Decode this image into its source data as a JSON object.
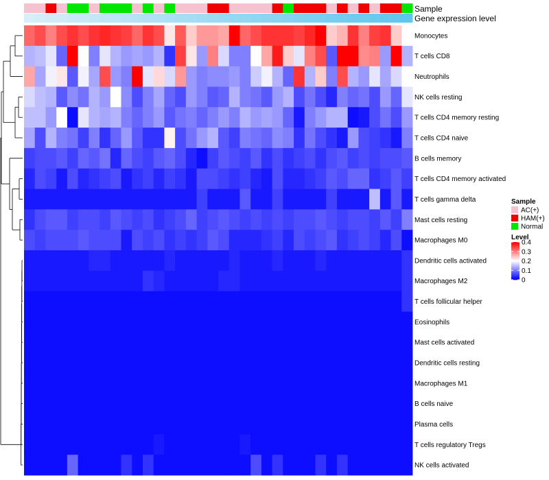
{
  "chart_data": {
    "type": "heatmap",
    "annotation_labels": {
      "sample": "Sample",
      "gene_expression": "Gene expression level"
    },
    "rows": [
      "Monocytes",
      "T cells CD8",
      "Neutrophils",
      "NK cells resting",
      "T cells CD4 memory resting",
      "T cells CD4 naive",
      "B cells memory",
      "T cells CD4 memory activated",
      "T cells gamma delta",
      "Mast cells resting",
      "Macrophages M0",
      "Dendritic cells activated",
      "Macrophages M2",
      "T cells follicular helper",
      "Eosinophils",
      "Mast cells activated",
      "Dendritic cells resting",
      "Macrophages M1",
      "B cells naive",
      "Plasma cells",
      "T cells regulatory  Tregs",
      "NK cells activated"
    ],
    "sample_groups": [
      "AC(+)",
      "AC(+)",
      "HAM(+)",
      "AC(+)",
      "Normal",
      "Normal",
      "AC(+)",
      "Normal",
      "Normal",
      "Normal",
      "AC(+)",
      "Normal",
      "AC(+)",
      "Normal",
      "AC(+)",
      "AC(+)",
      "AC(+)",
      "HAM(+)",
      "HAM(+)",
      "AC(+)",
      "AC(+)",
      "AC(+)",
      "AC(+)",
      "HAM(+)",
      "Normal",
      "HAM(+)",
      "HAM(+)",
      "HAM(+)",
      "AC(+)",
      "HAM(+)",
      "AC(+)",
      "HAM(+)",
      "AC(+)",
      "HAM(+)",
      "HAM(+)",
      "Normal"
    ],
    "values": [
      [
        0.32,
        0.34,
        0.3,
        0.34,
        0.36,
        0.34,
        0.36,
        0.37,
        0.36,
        0.35,
        0.32,
        0.36,
        0.34,
        0.22,
        0.33,
        0.24,
        0.28,
        0.28,
        0.27,
        0.4,
        0.32,
        0.34,
        0.36,
        0.36,
        0.36,
        0.35,
        0.37,
        0.4,
        0.24,
        0.26,
        0.36,
        0.3,
        0.35,
        0.36,
        0.24,
        0.2
      ],
      [
        0.14,
        0.15,
        0.18,
        0.08,
        0.4,
        0.2,
        0.1,
        0.18,
        0.14,
        0.12,
        0.13,
        0.12,
        0.14,
        0.04,
        0.35,
        0.22,
        0.12,
        0.3,
        0.17,
        0.1,
        0.1,
        0.2,
        0.27,
        0.38,
        0.24,
        0.18,
        0.3,
        0.34,
        0.07,
        0.4,
        0.4,
        0.29,
        0.3,
        0.12,
        0.4,
        0.14
      ],
      [
        0.27,
        0.13,
        0.19,
        0.22,
        0.07,
        0.19,
        0.13,
        0.34,
        0.12,
        0.1,
        0.4,
        0.18,
        0.23,
        0.17,
        0.28,
        0.12,
        0.1,
        0.11,
        0.11,
        0.12,
        0.1,
        0.16,
        0.19,
        0.14,
        0.08,
        0.36,
        0.14,
        0.24,
        0.1,
        0.34,
        0.14,
        0.12,
        0.18,
        0.13,
        0.17,
        0.2
      ],
      [
        0.17,
        0.15,
        0.14,
        0.07,
        0.11,
        0.09,
        0.14,
        0.12,
        0.2,
        0.11,
        0.06,
        0.1,
        0.13,
        0.08,
        0.06,
        0.12,
        0.1,
        0.07,
        0.08,
        0.14,
        0.1,
        0.09,
        0.07,
        0.12,
        0.14,
        0.06,
        0.09,
        0.06,
        0.03,
        0.1,
        0.08,
        0.09,
        0.06,
        0.12,
        0.08,
        0.18
      ],
      [
        0.15,
        0.15,
        0.12,
        0.2,
        0.01,
        0.18,
        0.14,
        0.13,
        0.14,
        0.1,
        0.08,
        0.1,
        0.12,
        0.07,
        0.09,
        0.1,
        0.08,
        0.1,
        0.12,
        0.1,
        0.14,
        0.12,
        0.13,
        0.12,
        0.08,
        0.02,
        0.1,
        0.12,
        0.14,
        0.14,
        0.01,
        0.02,
        0.06,
        0.09,
        0.06,
        0.12
      ],
      [
        0.13,
        0.06,
        0.14,
        0.1,
        0.09,
        0.05,
        0.1,
        0.04,
        0.08,
        0.12,
        0.07,
        0.04,
        0.04,
        0.21,
        0.06,
        0.09,
        0.12,
        0.14,
        0.07,
        0.05,
        0.1,
        0.09,
        0.08,
        0.11,
        0.1,
        0.04,
        0.09,
        0.06,
        0.04,
        0.02,
        0.12,
        0.06,
        0.05,
        0.04,
        0.02,
        0.1
      ],
      [
        0.05,
        0.06,
        0.06,
        0.07,
        0.05,
        0.08,
        0.07,
        0.09,
        0.03,
        0.08,
        0.06,
        0.05,
        0.07,
        0.08,
        0.06,
        0.03,
        0.01,
        0.05,
        0.07,
        0.06,
        0.05,
        0.07,
        0.04,
        0.06,
        0.04,
        0.05,
        0.06,
        0.04,
        0.06,
        0.07,
        0.05,
        0.06,
        0.05,
        0.06,
        0.06,
        0.07
      ],
      [
        0.03,
        0.06,
        0.05,
        0.02,
        0.06,
        0.03,
        0.04,
        0.05,
        0.06,
        0.02,
        0.04,
        0.05,
        0.03,
        0.05,
        0.04,
        0.02,
        0.06,
        0.06,
        0.05,
        0.04,
        0.05,
        0.03,
        0.02,
        0.06,
        0.03,
        0.03,
        0.04,
        0.05,
        0.07,
        0.06,
        0.08,
        0.08,
        0.04,
        0.05,
        0.07,
        0.05
      ],
      [
        0.02,
        0.02,
        0.02,
        0.02,
        0.02,
        0.02,
        0.02,
        0.02,
        0.02,
        0.02,
        0.02,
        0.02,
        0.02,
        0.02,
        0.02,
        0.02,
        0.05,
        0.02,
        0.02,
        0.02,
        0.07,
        0.02,
        0.02,
        0.05,
        0.02,
        0.02,
        0.02,
        0.02,
        0.05,
        0.02,
        0.02,
        0.02,
        0.15,
        0.02,
        0.07,
        0.02
      ],
      [
        0.04,
        0.06,
        0.07,
        0.07,
        0.05,
        0.06,
        0.06,
        0.05,
        0.07,
        0.06,
        0.05,
        0.06,
        0.04,
        0.05,
        0.06,
        0.08,
        0.05,
        0.06,
        0.07,
        0.06,
        0.05,
        0.06,
        0.05,
        0.06,
        0.05,
        0.06,
        0.06,
        0.07,
        0.06,
        0.05,
        0.06,
        0.06,
        0.05,
        0.07,
        0.05,
        0.1
      ],
      [
        0.06,
        0.05,
        0.06,
        0.06,
        0.06,
        0.07,
        0.06,
        0.06,
        0.06,
        0.02,
        0.06,
        0.05,
        0.06,
        0.04,
        0.05,
        0.04,
        0.05,
        0.07,
        0.06,
        0.03,
        0.03,
        0.03,
        0.04,
        0.05,
        0.03,
        0.06,
        0.05,
        0.06,
        0.07,
        0.04,
        0.05,
        0.06,
        0.05,
        0.03,
        0.06,
        0.01
      ],
      [
        0.02,
        0.02,
        0.02,
        0.02,
        0.02,
        0.02,
        0.03,
        0.03,
        0.02,
        0.02,
        0.02,
        0.02,
        0.02,
        0.03,
        0.02,
        0.02,
        0.02,
        0.02,
        0.02,
        0.03,
        0.02,
        0.02,
        0.02,
        0.03,
        0.02,
        0.02,
        0.02,
        0.03,
        0.02,
        0.02,
        0.02,
        0.02,
        0.02,
        0.02,
        0.02,
        0.04
      ],
      [
        0.02,
        0.02,
        0.02,
        0.02,
        0.02,
        0.02,
        0.02,
        0.02,
        0.02,
        0.02,
        0.02,
        0.04,
        0.03,
        0.02,
        0.02,
        0.02,
        0.02,
        0.02,
        0.03,
        0.03,
        0.02,
        0.02,
        0.02,
        0.02,
        0.02,
        0.02,
        0.02,
        0.02,
        0.02,
        0.02,
        0.02,
        0.02,
        0.02,
        0.02,
        0.02,
        0.04
      ],
      [
        0.01,
        0.01,
        0.01,
        0.01,
        0.01,
        0.01,
        0.01,
        0.01,
        0.01,
        0.01,
        0.01,
        0.01,
        0.01,
        0.01,
        0.01,
        0.01,
        0.01,
        0.01,
        0.01,
        0.01,
        0.01,
        0.01,
        0.01,
        0.01,
        0.01,
        0.01,
        0.01,
        0.01,
        0.01,
        0.01,
        0.01,
        0.01,
        0.01,
        0.01,
        0.01,
        0.04
      ],
      [
        0.01,
        0.01,
        0.01,
        0.01,
        0.01,
        0.01,
        0.01,
        0.01,
        0.01,
        0.01,
        0.01,
        0.01,
        0.01,
        0.01,
        0.01,
        0.01,
        0.01,
        0.01,
        0.01,
        0.01,
        0.01,
        0.01,
        0.01,
        0.01,
        0.01,
        0.01,
        0.01,
        0.01,
        0.01,
        0.01,
        0.01,
        0.01,
        0.01,
        0.01,
        0.01,
        0.01
      ],
      [
        0.01,
        0.01,
        0.01,
        0.01,
        0.01,
        0.01,
        0.01,
        0.01,
        0.01,
        0.01,
        0.01,
        0.01,
        0.01,
        0.01,
        0.01,
        0.01,
        0.01,
        0.01,
        0.01,
        0.01,
        0.01,
        0.01,
        0.01,
        0.01,
        0.01,
        0.01,
        0.01,
        0.01,
        0.01,
        0.01,
        0.01,
        0.01,
        0.01,
        0.01,
        0.01,
        0.01
      ],
      [
        0.01,
        0.01,
        0.01,
        0.01,
        0.01,
        0.01,
        0.01,
        0.01,
        0.01,
        0.01,
        0.01,
        0.01,
        0.01,
        0.01,
        0.01,
        0.01,
        0.01,
        0.01,
        0.01,
        0.01,
        0.01,
        0.01,
        0.01,
        0.01,
        0.01,
        0.01,
        0.01,
        0.01,
        0.01,
        0.01,
        0.01,
        0.01,
        0.01,
        0.01,
        0.01,
        0.01
      ],
      [
        0.01,
        0.01,
        0.01,
        0.01,
        0.01,
        0.01,
        0.01,
        0.01,
        0.01,
        0.01,
        0.01,
        0.01,
        0.01,
        0.01,
        0.01,
        0.01,
        0.01,
        0.01,
        0.01,
        0.01,
        0.01,
        0.01,
        0.01,
        0.01,
        0.01,
        0.01,
        0.01,
        0.01,
        0.01,
        0.01,
        0.01,
        0.01,
        0.01,
        0.01,
        0.01,
        0.01
      ],
      [
        0.01,
        0.01,
        0.01,
        0.01,
        0.01,
        0.01,
        0.01,
        0.01,
        0.01,
        0.01,
        0.01,
        0.01,
        0.01,
        0.01,
        0.01,
        0.01,
        0.01,
        0.01,
        0.01,
        0.01,
        0.01,
        0.01,
        0.01,
        0.01,
        0.01,
        0.01,
        0.01,
        0.01,
        0.01,
        0.01,
        0.01,
        0.01,
        0.01,
        0.01,
        0.01,
        0.01
      ],
      [
        0.01,
        0.01,
        0.01,
        0.01,
        0.01,
        0.01,
        0.01,
        0.01,
        0.01,
        0.01,
        0.01,
        0.01,
        0.01,
        0.01,
        0.01,
        0.01,
        0.01,
        0.01,
        0.01,
        0.01,
        0.01,
        0.01,
        0.01,
        0.01,
        0.01,
        0.01,
        0.01,
        0.01,
        0.01,
        0.01,
        0.01,
        0.01,
        0.01,
        0.01,
        0.01,
        0.01
      ],
      [
        0.01,
        0.01,
        0.01,
        0.01,
        0.01,
        0.01,
        0.01,
        0.01,
        0.01,
        0.01,
        0.01,
        0.01,
        0.02,
        0.01,
        0.01,
        0.01,
        0.01,
        0.01,
        0.01,
        0.01,
        0.02,
        0.01,
        0.01,
        0.01,
        0.01,
        0.01,
        0.01,
        0.01,
        0.01,
        0.01,
        0.01,
        0.01,
        0.01,
        0.01,
        0.01,
        0.01
      ],
      [
        0.01,
        0.01,
        0.01,
        0.01,
        0.08,
        0.01,
        0.01,
        0.01,
        0.01,
        0.04,
        0.01,
        0.04,
        0.01,
        0.01,
        0.01,
        0.01,
        0.01,
        0.01,
        0.01,
        0.01,
        0.01,
        0.06,
        0.01,
        0.04,
        0.01,
        0.01,
        0.01,
        0.04,
        0.01,
        0.04,
        0.01,
        0.01,
        0.01,
        0.01,
        0.01,
        0.01
      ]
    ],
    "sample_colors": {
      "AC(+)": "#f6c2cf",
      "HAM(+)": "#f10000",
      "Normal": "#00e600"
    },
    "gene_expression_gradient": {
      "from": "#d8eef8",
      "to": "#5fc6ee"
    },
    "color_scale": {
      "min": 0,
      "max": 0.4,
      "colors": [
        "#0000ff",
        "#ffffff",
        "#ff0000"
      ]
    },
    "legend": {
      "sample_title": "Sample",
      "sample_entries": [
        "AC(+)",
        "HAM(+)",
        "Normal"
      ],
      "level_title": "Level",
      "level_ticks": [
        "0.4",
        "0.3",
        "0.2",
        "0.1",
        "0"
      ],
      "level_values": [
        0.4,
        0.3,
        0.2,
        0.1,
        0
      ]
    },
    "row_dendrogram": true
  }
}
